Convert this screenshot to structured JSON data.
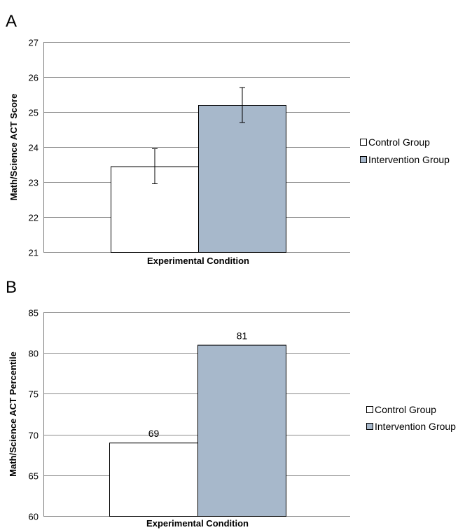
{
  "chart_data": [
    {
      "panel": "A",
      "type": "bar",
      "xlabel": "Experimental Condition",
      "ylabel": "Math/Science ACT Score",
      "ylim": [
        21,
        27
      ],
      "yticks": [
        21,
        22,
        23,
        24,
        25,
        26,
        27
      ],
      "grid": true,
      "legend_placement": "right",
      "series": [
        {
          "name": "Control Group",
          "value": 23.45,
          "error": 0.5,
          "color": "#ffffff"
        },
        {
          "name": "Intervention Group",
          "value": 25.2,
          "error": 0.5,
          "color": "#a7b8cb"
        }
      ]
    },
    {
      "panel": "B",
      "type": "bar",
      "xlabel": "Experimental Condition",
      "ylabel": "Math/Science ACT Percentile",
      "ylim": [
        60,
        85
      ],
      "yticks": [
        60,
        65,
        70,
        75,
        80,
        85
      ],
      "grid": true,
      "legend_placement": "right",
      "series": [
        {
          "name": "Control Group",
          "value": 69,
          "data_label": "69",
          "color": "#ffffff"
        },
        {
          "name": "Intervention Group",
          "value": 81,
          "data_label": "81",
          "color": "#a7b8cb"
        }
      ]
    }
  ]
}
